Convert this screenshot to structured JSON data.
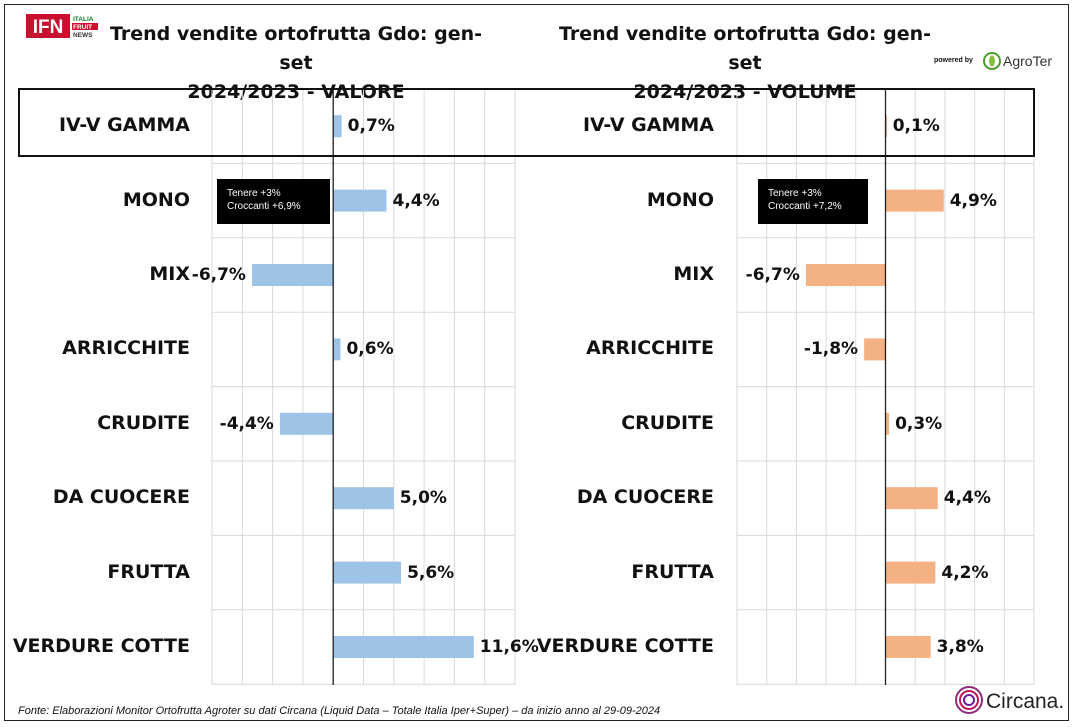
{
  "header": {
    "brand_logo_text": "IFN",
    "brand_logo_sub": [
      "ITALIA",
      "FRUIT",
      "NEWS"
    ],
    "powered_by": "powered by",
    "partner_logo_text": "AgroTer"
  },
  "left_chart_title": [
    "Trend vendite ortofrutta Gdo: gen-set",
    "2024/2023 - VALORE"
  ],
  "right_chart_title": [
    "Trend vendite ortofrutta Gdo: gen-set",
    "2024/2023 - VOLUME"
  ],
  "notes": {
    "left": [
      "Tenere +3%",
      "Croccanti +6,9%"
    ],
    "right": [
      "Tenere +3%",
      "Croccanti +7,2%"
    ]
  },
  "footer": {
    "source": "Fonte: Elaborazioni Monitor Ortofrutta Agroter su dati Circana (Liquid Data – Totale Italia Iper+Super) –  da inizio anno al 29-09-2024",
    "source_logo_text": "Circana."
  },
  "colors": {
    "valore": "#9dc3e6",
    "volume": "#f4b183",
    "highlight_border": "#111111"
  },
  "chart_data": [
    {
      "type": "bar",
      "orientation": "horizontal",
      "title": "Trend vendite ortofrutta Gdo: gen-set 2024/2023 - VALORE",
      "categories": [
        "IV-V GAMMA",
        "MONO",
        "MIX",
        "ARRICCHITE",
        "CRUDITE",
        "DA CUOCERE",
        "FRUTTA",
        "VERDURE COTTE"
      ],
      "values": [
        0.7,
        4.4,
        -6.7,
        0.6,
        -4.4,
        5.0,
        5.6,
        11.6
      ],
      "labels": [
        "0,7%",
        "4,4%",
        "-6,7%",
        "0,6%",
        "-4,4%",
        "5,0%",
        "5,6%",
        "11,6%"
      ],
      "xlim": [
        -10,
        15
      ],
      "grid": true,
      "color": "#9dc3e6"
    },
    {
      "type": "bar",
      "orientation": "horizontal",
      "title": "Trend vendite ortofrutta Gdo: gen-set 2024/2023 - VOLUME",
      "categories": [
        "IV-V GAMMA",
        "MONO",
        "MIX",
        "ARRICCHITE",
        "CRUDITE",
        "DA CUOCERE",
        "FRUTTA",
        "VERDURE COTTE"
      ],
      "values": [
        0.1,
        4.9,
        -6.7,
        -1.8,
        0.3,
        4.4,
        4.2,
        3.8
      ],
      "labels": [
        "0,1%",
        "4,9%",
        "-6,7%",
        "-1,8%",
        "0,3%",
        "4,4%",
        "4,2%",
        "3,8%"
      ],
      "xlim": [
        -12.5,
        12.5
      ],
      "grid": true,
      "color": "#f4b183"
    }
  ]
}
